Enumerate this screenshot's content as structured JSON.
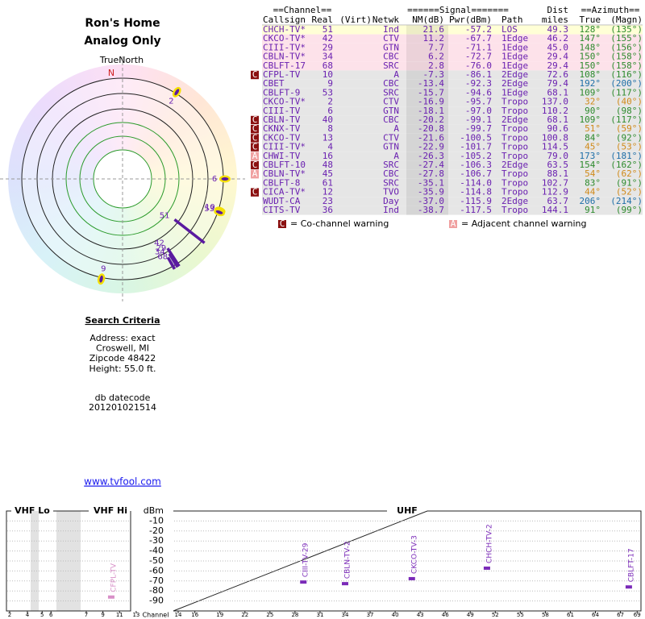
{
  "header": {
    "title": "Ron's Home",
    "subtitle": "Analog Only",
    "compass": "TrueNorth",
    "north": "N"
  },
  "table": {
    "group_headers": {
      "channel": "==Channel==",
      "signal": "======Signal=======",
      "azimuth": "==Azimuth=="
    },
    "columns": {
      "callsign": "Callsign",
      "real": "Real",
      "virt": "(Virt)",
      "netwk": "Netwk",
      "nm": "NM(dB)",
      "pwr": "Pwr(dBm)",
      "path": "Path",
      "dist_top": "Dist",
      "dist": "miles",
      "true": "True",
      "magn": "(Magn)"
    },
    "rows": [
      {
        "callsign": "CHCH-TV*",
        "real": "51",
        "netwk": "Ind",
        "nm": "21.6",
        "pwr": "-57.2",
        "path": "LOS",
        "dist": "49.3",
        "true": "128°",
        "magn": "(135°)",
        "bg": "#ffffd6",
        "az_color": "#2e8b2e"
      },
      {
        "callsign": "CKCO-TV*",
        "real": "42",
        "netwk": "CTV",
        "nm": "11.2",
        "pwr": "-67.7",
        "path": "1Edge",
        "dist": "46.2",
        "true": "147°",
        "magn": "(155°)",
        "bg": "#fde2ea",
        "az_color": "#2e8b2e"
      },
      {
        "callsign": "CIII-TV*",
        "real": "29",
        "netwk": "GTN",
        "nm": "7.7",
        "pwr": "-71.1",
        "path": "1Edge",
        "dist": "45.0",
        "true": "148°",
        "magn": "(156°)",
        "bg": "#fde2ea",
        "az_color": "#2e8b2e"
      },
      {
        "callsign": "CBLN-TV*",
        "real": "34",
        "netwk": "CBC",
        "nm": "6.2",
        "pwr": "-72.7",
        "path": "1Edge",
        "dist": "29.4",
        "true": "150°",
        "magn": "(158°)",
        "bg": "#fde2ea",
        "az_color": "#2e8b2e"
      },
      {
        "callsign": "CBLFT-17",
        "real": "68",
        "netwk": "SRC",
        "nm": "2.8",
        "pwr": "-76.0",
        "path": "1Edge",
        "dist": "29.4",
        "true": "150°",
        "magn": "(158°)",
        "bg": "#fde2ea",
        "az_color": "#2e8b2e"
      },
      {
        "callsign": "CFPL-TV",
        "real": "10",
        "netwk": "A",
        "nm": "-7.3",
        "pwr": "-86.1",
        "path": "2Edge",
        "dist": "72.6",
        "true": "108°",
        "magn": "(116°)",
        "bg": "#e6e6e6",
        "az_color": "#2e8b2e",
        "warn": "C"
      },
      {
        "callsign": "CBET",
        "real": "9",
        "netwk": "CBC",
        "nm": "-13.4",
        "pwr": "-92.3",
        "path": "2Edge",
        "dist": "79.4",
        "true": "192°",
        "magn": "(200°)",
        "bg": "#e6e6e6",
        "az_color": "#1f6fa8"
      },
      {
        "callsign": "CBLFT-9",
        "real": "53",
        "netwk": "SRC",
        "nm": "-15.7",
        "pwr": "-94.6",
        "path": "1Edge",
        "dist": "68.1",
        "true": "109°",
        "magn": "(117°)",
        "bg": "#e6e6e6",
        "az_color": "#2e8b2e"
      },
      {
        "callsign": "CKCO-TV*",
        "real": "2",
        "netwk": "CTV",
        "nm": "-16.9",
        "pwr": "-95.7",
        "path": "Tropo",
        "dist": "137.0",
        "true": "32°",
        "magn": "(40°)",
        "bg": "#e6e6e6",
        "az_color": "#d08a1a"
      },
      {
        "callsign": "CIII-TV",
        "real": "6",
        "netwk": "GTN",
        "nm": "-18.1",
        "pwr": "-97.0",
        "path": "Tropo",
        "dist": "110.2",
        "true": "90°",
        "magn": "(98°)",
        "bg": "#e6e6e6",
        "az_color": "#2e8b2e"
      },
      {
        "callsign": "CBLN-TV",
        "real": "40",
        "netwk": "CBC",
        "nm": "-20.2",
        "pwr": "-99.1",
        "path": "2Edge",
        "dist": "68.1",
        "true": "109°",
        "magn": "(117°)",
        "bg": "#e6e6e6",
        "az_color": "#2e8b2e",
        "warn": "C"
      },
      {
        "callsign": "CKNX-TV",
        "real": "8",
        "netwk": "A",
        "nm": "-20.8",
        "pwr": "-99.7",
        "path": "Tropo",
        "dist": "90.6",
        "true": "51°",
        "magn": "(59°)",
        "bg": "#e6e6e6",
        "az_color": "#d08a1a",
        "warn": "C"
      },
      {
        "callsign": "CKCO-TV",
        "real": "13",
        "netwk": "CTV",
        "nm": "-21.6",
        "pwr": "-100.5",
        "path": "Tropo",
        "dist": "100.8",
        "true": "84°",
        "magn": "(92°)",
        "bg": "#e6e6e6",
        "az_color": "#2e8b2e",
        "warn": "C"
      },
      {
        "callsign": "CIII-TV*",
        "real": "4",
        "netwk": "GTN",
        "nm": "-22.9",
        "pwr": "-101.7",
        "path": "Tropo",
        "dist": "114.5",
        "true": "45°",
        "magn": "(53°)",
        "bg": "#e6e6e6",
        "az_color": "#d08a1a",
        "warn": "C"
      },
      {
        "callsign": "CHWI-TV",
        "real": "16",
        "netwk": "A",
        "nm": "-26.3",
        "pwr": "-105.2",
        "path": "Tropo",
        "dist": "79.0",
        "true": "173°",
        "magn": "(181°)",
        "bg": "#e6e6e6",
        "az_color": "#1f6fa8",
        "warn": "A"
      },
      {
        "callsign": "CBLFT-10",
        "real": "48",
        "netwk": "SRC",
        "nm": "-27.4",
        "pwr": "-106.3",
        "path": "2Edge",
        "dist": "63.5",
        "true": "154°",
        "magn": "(162°)",
        "bg": "#e6e6e6",
        "az_color": "#2e8b2e",
        "warn": "C"
      },
      {
        "callsign": "CBLN-TV*",
        "real": "45",
        "netwk": "CBC",
        "nm": "-27.8",
        "pwr": "-106.7",
        "path": "Tropo",
        "dist": "88.1",
        "true": "54°",
        "magn": "(62°)",
        "bg": "#e6e6e6",
        "az_color": "#d08a1a",
        "warn": "A"
      },
      {
        "callsign": "CBLFT-8",
        "real": "61",
        "netwk": "SRC",
        "nm": "-35.1",
        "pwr": "-114.0",
        "path": "Tropo",
        "dist": "102.7",
        "true": "83°",
        "magn": "(91°)",
        "bg": "#e6e6e6",
        "az_color": "#2e8b2e"
      },
      {
        "callsign": "CICA-TV*",
        "real": "12",
        "netwk": "TVO",
        "nm": "-35.9",
        "pwr": "-114.8",
        "path": "Tropo",
        "dist": "112.9",
        "true": "44°",
        "magn": "(52°)",
        "bg": "#e6e6e6",
        "az_color": "#d08a1a",
        "warn": "C"
      },
      {
        "callsign": "WUDT-CA",
        "real": "23",
        "netwk": "Day",
        "nm": "-37.0",
        "pwr": "-115.9",
        "path": "2Edge",
        "dist": "63.7",
        "true": "206°",
        "magn": "(214°)",
        "bg": "#e6e6e6",
        "az_color": "#1f6fa8"
      },
      {
        "callsign": "CITS-TV",
        "real": "36",
        "netwk": "Ind",
        "nm": "-38.7",
        "pwr": "-117.5",
        "path": "Tropo",
        "dist": "144.1",
        "true": "91°",
        "magn": "(99°)",
        "bg": "#e6e6e6",
        "az_color": "#2e8b2e"
      }
    ]
  },
  "legend": {
    "co": {
      "icon": "C",
      "text": "= Co-channel warning"
    },
    "adj": {
      "icon": "A",
      "text": "= Adjacent channel warning"
    }
  },
  "search": {
    "title": "Search Criteria",
    "lines": [
      "Address: exact",
      "Croswell, MI",
      "Zipcode 48422",
      "Height: 55.0 ft."
    ],
    "db_label": "db datecode",
    "db_value": "201201021514",
    "link": "www.tvfool.com"
  },
  "spectrum": {
    "panels": {
      "vhf_lo": "VHF Lo",
      "vhf_hi": "VHF Hi",
      "uhf": "UHF"
    },
    "unit": "dBm",
    "x_label": "Channel",
    "ylim": [
      -100,
      0
    ],
    "yticks": [
      -10,
      -20,
      -30,
      -40,
      -50,
      -60,
      -70,
      -80,
      -90
    ],
    "vhf_ticks": [
      2,
      4,
      5,
      6,
      7,
      9,
      11,
      13
    ],
    "uhf_ticks": [
      14,
      16,
      19,
      22,
      25,
      28,
      31,
      34,
      37,
      40,
      43,
      46,
      49,
      52,
      55,
      58,
      61,
      64,
      67,
      69
    ],
    "signals": [
      {
        "label": "CFPL-TV",
        "channel": 10,
        "dbm": -86.1,
        "color": "#d890c8"
      },
      {
        "label": "CIII-TV-29",
        "channel": 29,
        "dbm": -71.1,
        "color": "#7a2ab8"
      },
      {
        "label": "CBLN-TV-2",
        "channel": 34,
        "dbm": -72.7,
        "color": "#7a2ab8"
      },
      {
        "label": "CKCO-TV-3",
        "channel": 42,
        "dbm": -67.7,
        "color": "#7a2ab8"
      },
      {
        "label": "CHCH-TV-2",
        "channel": 51,
        "dbm": -57.2,
        "color": "#7a2ab8"
      },
      {
        "label": "CBLFT-17",
        "channel": 68,
        "dbm": -76.0,
        "color": "#7a2ab8"
      }
    ]
  }
}
